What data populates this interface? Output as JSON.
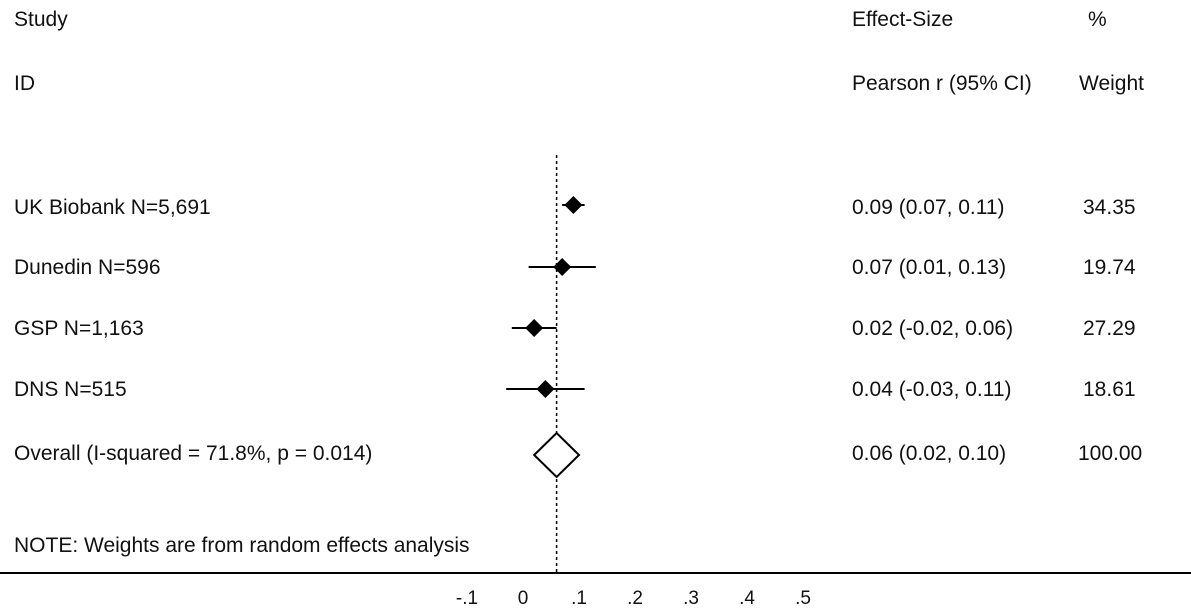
{
  "chart_data": {
    "type": "forest",
    "headers": {
      "study": "Study",
      "id": "ID",
      "effect_size": "Effect-Size",
      "measure": "Pearson r (95% CI)",
      "percent": "%",
      "weight": "Weight"
    },
    "rows": [
      {
        "label": "UK Biobank N=5,691",
        "estimate": 0.09,
        "lower": 0.07,
        "upper": 0.11,
        "ci_text": "0.09 (0.07, 0.11)",
        "weight": "34.35"
      },
      {
        "label": "Dunedin N=596",
        "estimate": 0.07,
        "lower": 0.01,
        "upper": 0.13,
        "ci_text": "0.07 (0.01, 0.13)",
        "weight": "19.74"
      },
      {
        "label": "GSP N=1,163",
        "estimate": 0.02,
        "lower": -0.02,
        "upper": 0.06,
        "ci_text": "0.02 (-0.02, 0.06)",
        "weight": "27.29"
      },
      {
        "label": "DNS N=515",
        "estimate": 0.04,
        "lower": -0.03,
        "upper": 0.11,
        "ci_text": "0.04 (-0.03, 0.11)",
        "weight": "18.61"
      }
    ],
    "overall": {
      "label": "Overall  (I-squared = 71.8%, p = 0.014)",
      "estimate": 0.06,
      "lower": 0.02,
      "upper": 0.1,
      "ci_text": "0.06 (0.02, 0.10)",
      "weight": "100.00"
    },
    "note": "NOTE: Weights are from random effects analysis",
    "x_ticks": [
      "-.1",
      "0",
      ".1",
      ".2",
      ".3",
      ".4",
      ".5"
    ],
    "x_tick_values": [
      -0.1,
      0,
      0.1,
      0.2,
      0.3,
      0.4,
      0.5
    ],
    "reference_line": 0.06
  }
}
